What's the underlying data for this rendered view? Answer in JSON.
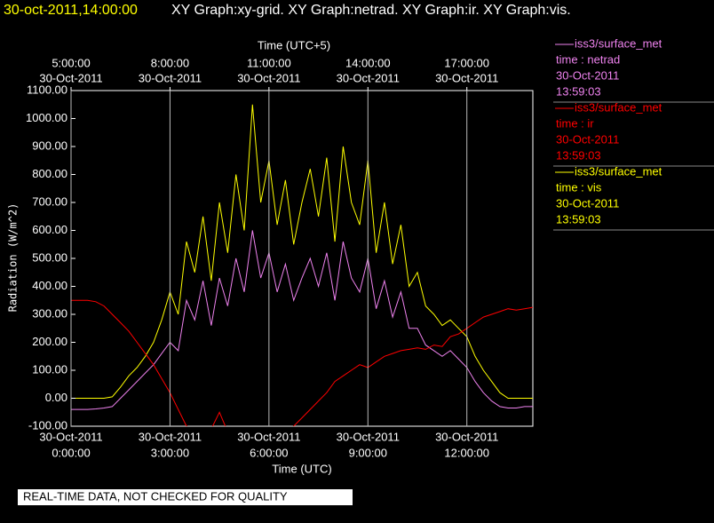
{
  "chart_data": {
    "type": "line",
    "timestamp": "30-oct-2011,14:00:00",
    "title": "XY Graph:xy-grid.  XY Graph:netrad.  XY Graph:ir.  XY Graph:vis.",
    "xlabel": "Time (UTC)",
    "x2label": "Time (UTC+5)",
    "ylabel": "Radiation (W/m^2)",
    "note": "REAL-TIME DATA, NOT CHECKED FOR QUALITY",
    "grid": true,
    "xlim": [
      0,
      14
    ],
    "xticks": [
      {
        "value": 0,
        "label": "0:00:00",
        "date": "30-Oct-2011"
      },
      {
        "value": 3,
        "label": "3:00:00",
        "date": "30-Oct-2011"
      },
      {
        "value": 6,
        "label": "6:00:00",
        "date": "30-Oct-2011"
      },
      {
        "value": 9,
        "label": "9:00:00",
        "date": "30-Oct-2011"
      },
      {
        "value": 12,
        "label": "12:00:00",
        "date": "30-Oct-2011"
      }
    ],
    "x2ticks": [
      {
        "value": 0,
        "label": "5:00:00",
        "date": "30-Oct-2011"
      },
      {
        "value": 3,
        "label": "8:00:00",
        "date": "30-Oct-2011"
      },
      {
        "value": 6,
        "label": "11:00:00",
        "date": "30-Oct-2011"
      },
      {
        "value": 9,
        "label": "14:00:00",
        "date": "30-Oct-2011"
      },
      {
        "value": 12,
        "label": "17:00:00",
        "date": "30-Oct-2011"
      }
    ],
    "ylim": [
      -100,
      1100
    ],
    "yticks": [
      {
        "value": -100,
        "label": "-100.00"
      },
      {
        "value": 0,
        "label": "0.00"
      },
      {
        "value": 100,
        "label": "100.00"
      },
      {
        "value": 200,
        "label": "200.00"
      },
      {
        "value": 300,
        "label": "300.00"
      },
      {
        "value": 400,
        "label": "400.00"
      },
      {
        "value": 500,
        "label": "500.00"
      },
      {
        "value": 600,
        "label": "600.00"
      },
      {
        "value": 700,
        "label": "700.00"
      },
      {
        "value": 800,
        "label": "800.00"
      },
      {
        "value": 900,
        "label": "900.00"
      },
      {
        "value": 1000,
        "label": "1000.00"
      },
      {
        "value": 1100,
        "label": "1100.00"
      }
    ],
    "x": [
      0,
      0.25,
      0.5,
      0.75,
      1,
      1.25,
      1.5,
      1.75,
      2,
      2.25,
      2.5,
      2.75,
      3,
      3.25,
      3.5,
      3.75,
      4,
      4.25,
      4.5,
      4.75,
      5,
      5.25,
      5.5,
      5.75,
      6,
      6.25,
      6.5,
      6.75,
      7,
      7.25,
      7.5,
      7.75,
      8,
      8.25,
      8.5,
      8.75,
      9,
      9.25,
      9.5,
      9.75,
      10,
      10.25,
      10.5,
      10.75,
      11,
      11.25,
      11.5,
      11.75,
      12,
      12.25,
      12.5,
      12.75,
      13,
      13.25,
      13.5,
      13.75,
      14
    ],
    "series": [
      {
        "name": "iss3/surface_met",
        "label": "time : netrad",
        "date": "30-Oct-2011",
        "time": "13:59:03",
        "color": "#ee82ee",
        "values": [
          -40,
          -40,
          -40,
          -38,
          -35,
          -30,
          0,
          30,
          60,
          90,
          120,
          160,
          200,
          170,
          350,
          280,
          420,
          260,
          430,
          330,
          500,
          380,
          600,
          430,
          520,
          380,
          480,
          350,
          430,
          500,
          400,
          520,
          350,
          560,
          430,
          380,
          500,
          320,
          420,
          290,
          380,
          250,
          250,
          190,
          170,
          150,
          170,
          140,
          110,
          60,
          20,
          -10,
          -30,
          -35,
          -35,
          -30,
          -30
        ]
      },
      {
        "name": "iss3/surface_met",
        "label": "time : ir",
        "date": "30-Oct-2011",
        "time": "13:59:03",
        "color": "#ff0000",
        "values": [
          350,
          350,
          350,
          345,
          330,
          300,
          270,
          240,
          200,
          160,
          120,
          70,
          20,
          -40,
          -100,
          -110,
          -120,
          -110,
          -50,
          -120,
          -130,
          -120,
          -130,
          -125,
          -120,
          -130,
          -115,
          -100,
          -70,
          -40,
          -10,
          20,
          60,
          80,
          100,
          120,
          110,
          130,
          150,
          160,
          170,
          175,
          180,
          175,
          190,
          185,
          220,
          230,
          250,
          270,
          290,
          300,
          310,
          320,
          315,
          320,
          325
        ]
      },
      {
        "name": "iss3/surface_met",
        "label": "time : vis",
        "date": "30-Oct-2011",
        "time": "13:59:03",
        "color": "#ffff00",
        "values": [
          0,
          0,
          0,
          0,
          0,
          5,
          40,
          80,
          110,
          150,
          200,
          280,
          380,
          300,
          560,
          450,
          650,
          420,
          700,
          520,
          800,
          600,
          1050,
          700,
          850,
          620,
          780,
          550,
          700,
          820,
          650,
          860,
          560,
          900,
          700,
          620,
          850,
          520,
          700,
          480,
          620,
          400,
          450,
          330,
          300,
          260,
          280,
          250,
          220,
          150,
          100,
          60,
          20,
          0,
          0,
          0,
          0
        ]
      }
    ]
  }
}
